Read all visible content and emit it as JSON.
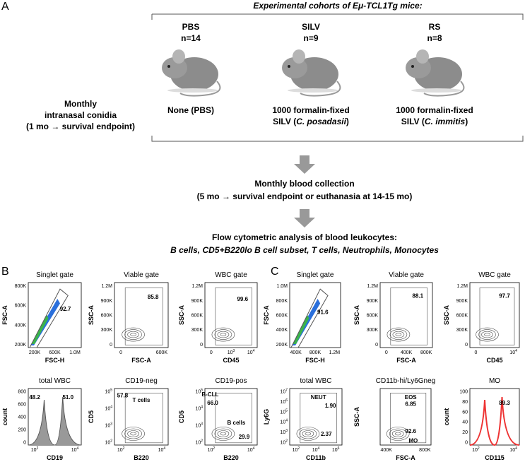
{
  "panel_a": {
    "label": "A",
    "heading": "Experimental cohorts of Eμ-TCL1Tg mice:",
    "cohorts": [
      {
        "name": "PBS",
        "n": "n=14",
        "line1": "None (PBS)"
      },
      {
        "name": "SILV",
        "n": "n=9",
        "line1": "1000 formalin-fixed",
        "pre": "SILV (",
        "species": "C. posadasii",
        "post": ")"
      },
      {
        "name": "RS",
        "n": "n=8",
        "line1": "1000 formalin-fixed",
        "pre": "SILV (",
        "species": "C. immitis",
        "post": ")"
      }
    ],
    "left": [
      "Monthly",
      "intranasal conidia",
      "(1 mo → survival endpoint)"
    ],
    "collection": [
      "Monthly blood collection",
      "(5 mo → survival endpoint or euthanasia at 14-15 mo)"
    ],
    "analysis": [
      "Flow cytometric analysis of blood leukocytes:",
      "B cells, CD5+B220lo B cell subset, T cells, Neutrophils, Monocytes"
    ]
  },
  "panel_b": {
    "label": "B",
    "plots": [
      {
        "title": "Singlet gate",
        "ylabel": "FSC-A",
        "xlabel": "FSC-H",
        "yticks": [
          "200K",
          "400K",
          "600K",
          "800K"
        ],
        "xticks": [
          "200K",
          "600K",
          "1.0M"
        ],
        "gates": [
          "92.7"
        ]
      },
      {
        "title": "Viable gate",
        "ylabel": "SSC-A",
        "xlabel": "FSC-A",
        "yticks": [
          "0",
          "300K",
          "600K",
          "900K",
          "1.2M"
        ],
        "xticks": [
          "0",
          "600K"
        ],
        "gates": [
          "85.8"
        ]
      },
      {
        "title": "WBC gate",
        "ylabel": "SSC-A",
        "xlabel": "CD45",
        "yticks": [
          "0",
          "300K",
          "600K",
          "900K",
          "1.2M"
        ],
        "xticks": [
          "0",
          {
            "b": "10",
            "e": "3"
          },
          {
            "b": "10",
            "e": "4"
          }
        ],
        "gates": [
          "99.6"
        ]
      },
      {
        "title": "total WBC",
        "ylabel": "count",
        "xlabel": "CD19",
        "yticks": [
          "0",
          "200",
          "400",
          "600",
          "800"
        ],
        "xticks": [
          {
            "b": "10",
            "e": "2"
          },
          {
            "b": "10",
            "e": "4"
          }
        ],
        "gates": [
          "48.2",
          "51.0"
        ]
      },
      {
        "title": "CD19-neg",
        "ylabel": "CD5",
        "xlabel": "B220",
        "yticks": [
          {
            "b": "10",
            "e": "2"
          },
          {
            "b": "10",
            "e": "3"
          },
          {
            "b": "10",
            "e": "4"
          },
          {
            "b": "10",
            "e": "5"
          }
        ],
        "xticks": [
          {
            "b": "10",
            "e": "2"
          },
          {
            "b": "10",
            "e": "4"
          }
        ],
        "gates": [
          "57.8",
          "T cells"
        ]
      },
      {
        "title": "CD19-pos",
        "ylabel": "CD5",
        "xlabel": "B220",
        "yticks": [
          {
            "b": "10",
            "e": "2"
          },
          {
            "b": "10",
            "e": "3"
          },
          {
            "b": "10",
            "e": "4"
          },
          {
            "b": "10",
            "e": "5"
          }
        ],
        "xticks": [
          {
            "b": "10",
            "e": "2"
          },
          {
            "b": "10",
            "e": "4"
          }
        ],
        "gates": [
          "B-CLL",
          "66.0",
          "B cells",
          "29.9"
        ]
      }
    ]
  },
  "panel_c": {
    "label": "C",
    "plots": [
      {
        "title": "Singlet gate",
        "ylabel": "FSC-A",
        "xlabel": "FSC-H",
        "yticks": [
          "200K",
          "400K",
          "600K",
          "800K",
          "1.0M"
        ],
        "xticks": [
          "400K",
          "800K",
          "1.2M"
        ],
        "gates": [
          "91.6"
        ]
      },
      {
        "title": "Viable gate",
        "ylabel": "SSC-A",
        "xlabel": "FSC-A",
        "yticks": [
          "0",
          "300K",
          "600K",
          "900K",
          "1.2M"
        ],
        "xticks": [
          "0",
          "400K",
          "800K"
        ],
        "gates": [
          "88.1"
        ]
      },
      {
        "title": "WBC gate",
        "ylabel": "SSC-A",
        "xlabel": "CD45",
        "yticks": [
          "0",
          "300K",
          "600K",
          "900K",
          "1.2M"
        ],
        "xticks": [
          "0",
          {
            "b": "10",
            "e": "4"
          }
        ],
        "gates": [
          "97.7"
        ]
      },
      {
        "title": "total WBC",
        "ylabel": "Ly6G",
        "xlabel": "CD11b",
        "yticks": [
          {
            "b": "10",
            "e": "2"
          },
          {
            "b": "10",
            "e": "3"
          },
          {
            "b": "10",
            "e": "4"
          },
          {
            "b": "10",
            "e": "5"
          },
          {
            "b": "10",
            "e": "6"
          },
          {
            "b": "10",
            "e": "7"
          }
        ],
        "xticks": [
          {
            "b": "10",
            "e": "2"
          },
          {
            "b": "10",
            "e": "4"
          },
          {
            "b": "10",
            "e": "6"
          }
        ],
        "gates": [
          "NEUT",
          "1.90",
          "2.37"
        ]
      },
      {
        "title": "CD11b-hi/Ly6Gneg",
        "ylabel": "SSC-A",
        "xlabel": "FSC-A",
        "yticks": [],
        "xticks": [
          "400K",
          "800K"
        ],
        "gates": [
          "EOS",
          "6.85",
          "92.6",
          "MO"
        ]
      },
      {
        "title": "MO",
        "ylabel": "count",
        "xlabel": "CD115",
        "yticks": [
          "0",
          "20",
          "40",
          "60",
          "80",
          "100"
        ],
        "xticks": [
          {
            "b": "10",
            "e": "2"
          },
          {
            "b": "10",
            "e": "4"
          }
        ],
        "gates": [
          "89.3"
        ]
      }
    ]
  }
}
